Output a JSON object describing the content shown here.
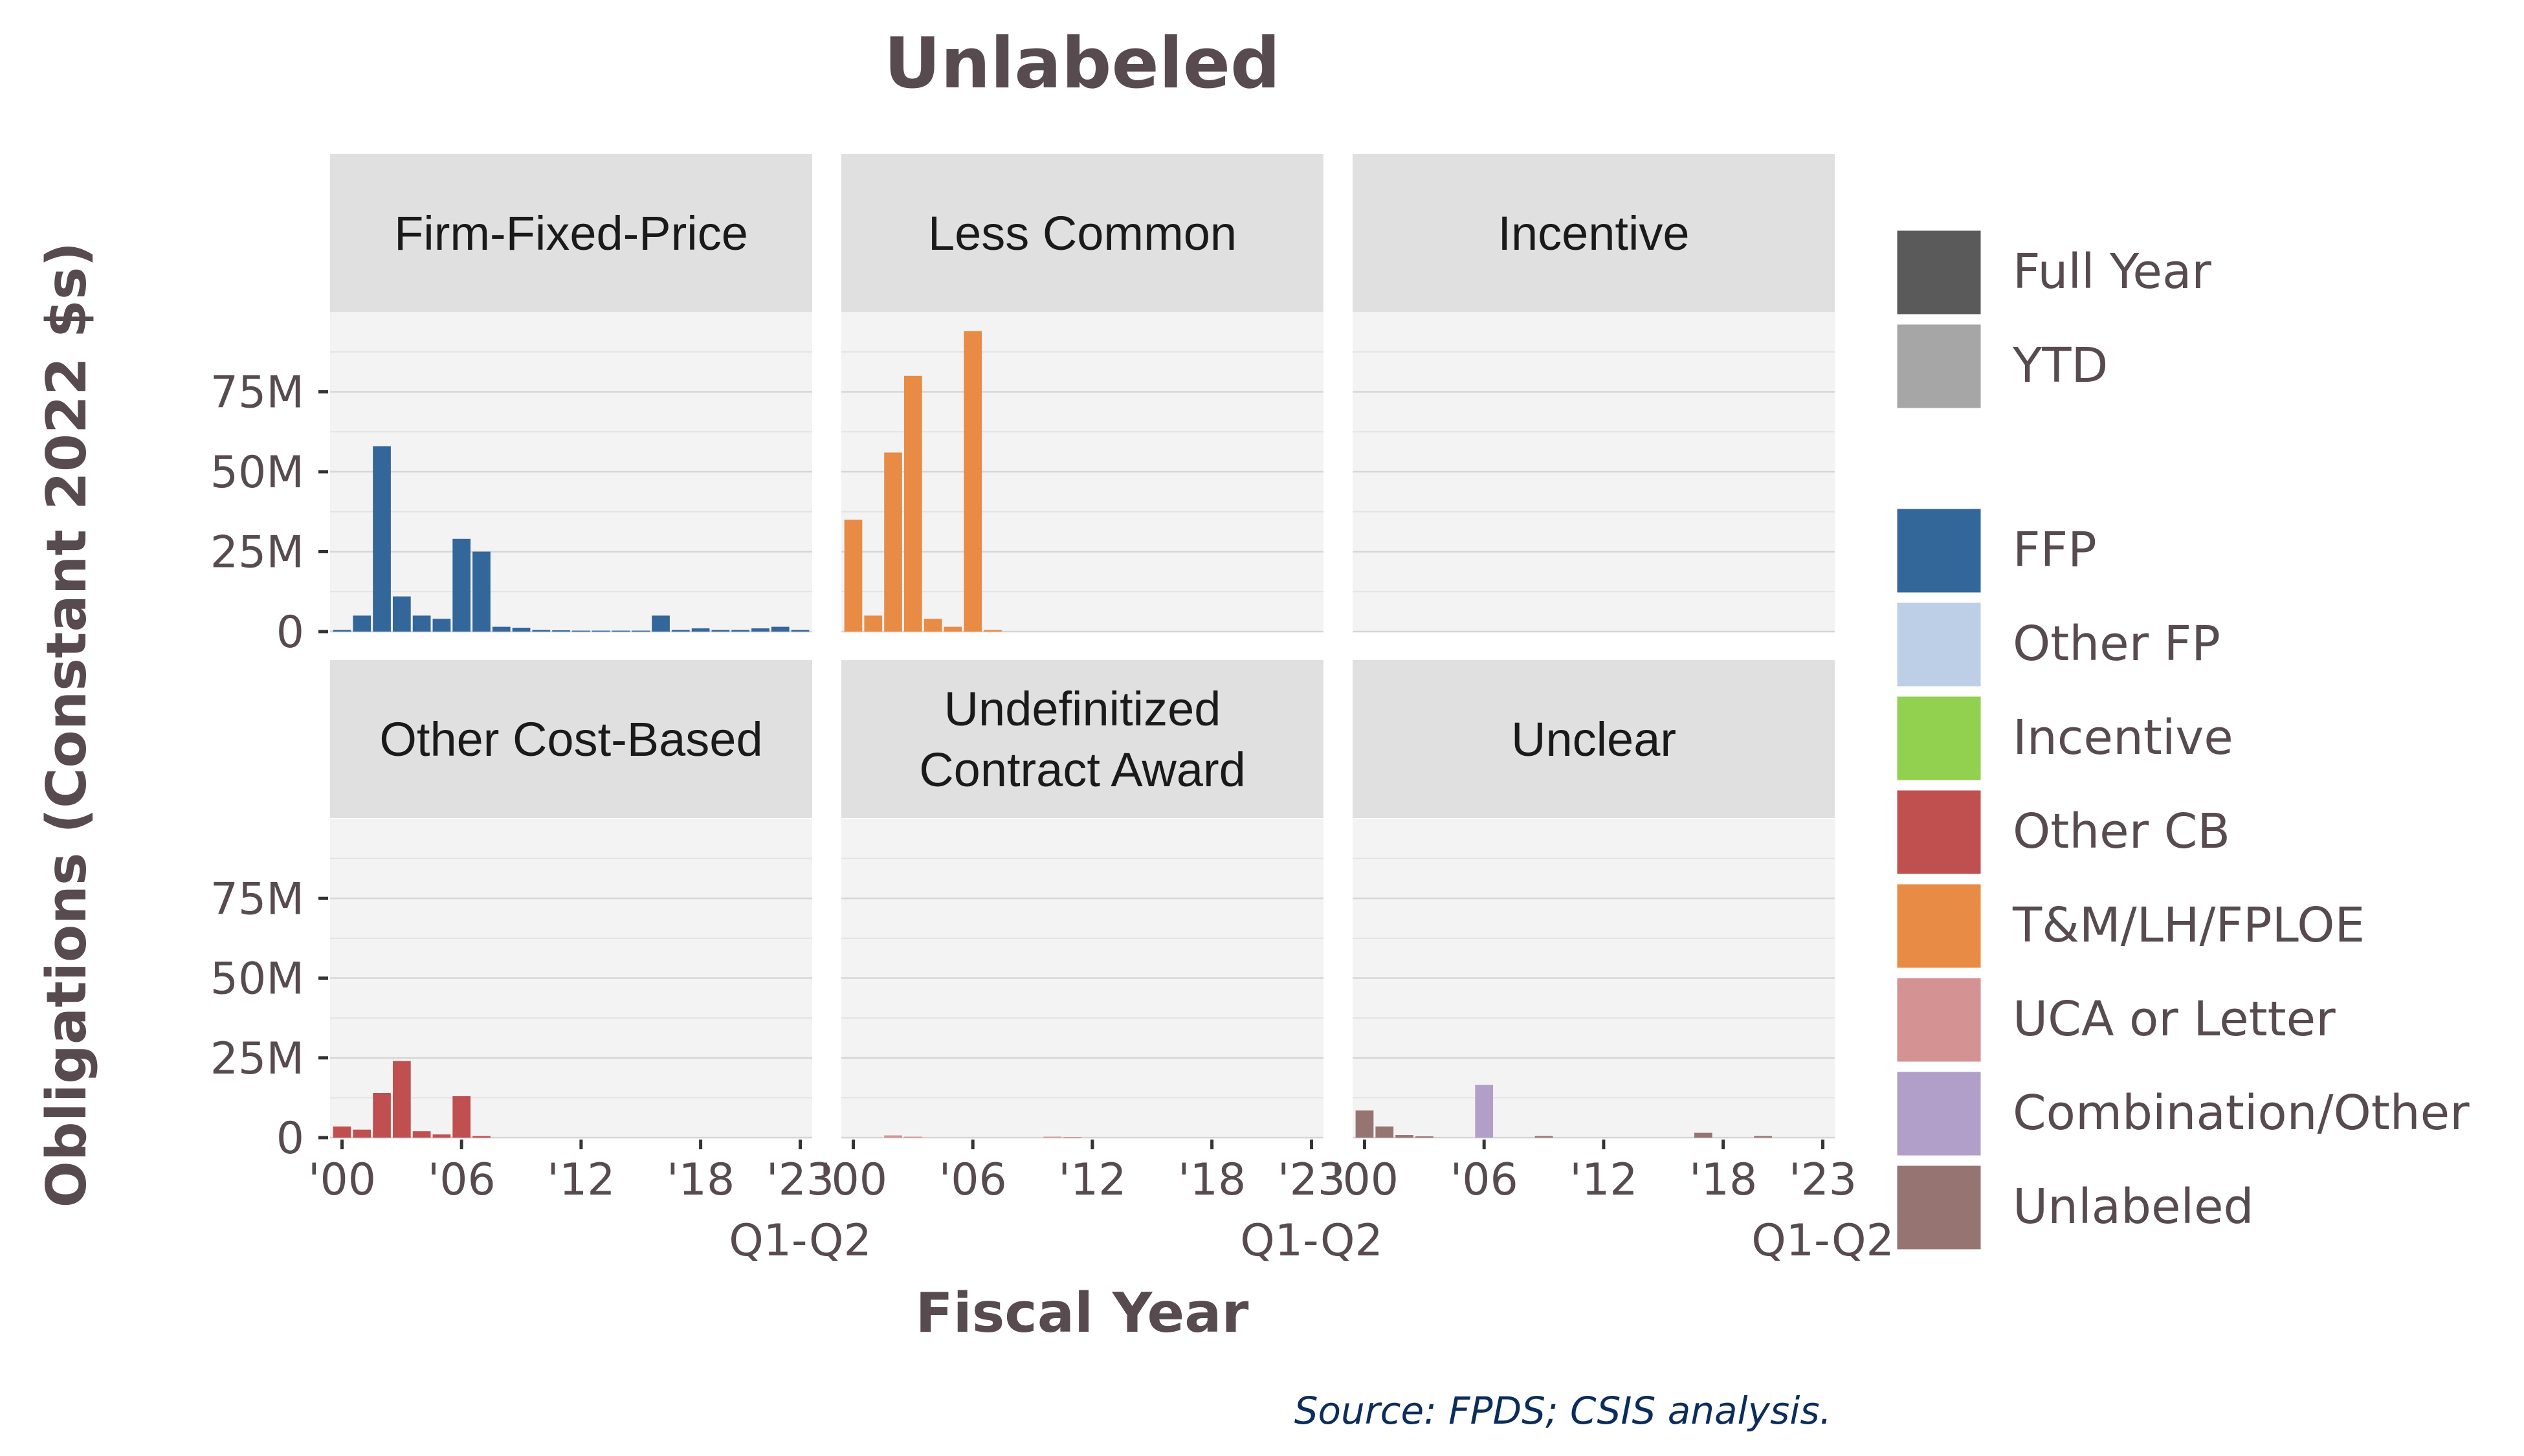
{
  "chart_data": {
    "type": "bar",
    "title": "Unlabeled",
    "xlabel": "Fiscal Year",
    "ylabel": "Obligations (Constant 2022 $s)",
    "caption": "Source: FPDS; CSIS analysis.",
    "ylim": [
      0,
      100
    ],
    "y_unit": "M",
    "y_ticks": [
      {
        "value": 0,
        "label": "0"
      },
      {
        "value": 25,
        "label": "25M"
      },
      {
        "value": 50,
        "label": "50M"
      },
      {
        "value": 75,
        "label": "75M"
      }
    ],
    "x_years": [
      2000,
      2001,
      2002,
      2003,
      2004,
      2005,
      2006,
      2007,
      2008,
      2009,
      2010,
      2011,
      2012,
      2013,
      2014,
      2015,
      2016,
      2017,
      2018,
      2019,
      2020,
      2021,
      2022,
      2023
    ],
    "x_ticks": [
      {
        "value": 2000,
        "label": "'00"
      },
      {
        "value": 2006,
        "label": "'06"
      },
      {
        "value": 2012,
        "label": "'12"
      },
      {
        "value": 2018,
        "label": "'18"
      },
      {
        "value": 2023,
        "label": "'23",
        "sublabel": "Q1-Q2"
      }
    ],
    "grid": true,
    "legend_position": "right",
    "legend_groups": [
      [
        {
          "label": "Full Year",
          "color": "#5a5a5a"
        },
        {
          "label": "YTD",
          "color": "#a6a6a6"
        }
      ],
      [
        {
          "label": "FFP",
          "color": "#336699"
        },
        {
          "label": "Other FP",
          "color": "#bccfe6"
        },
        {
          "label": "Incentive",
          "color": "#92d050"
        },
        {
          "label": "Other CB",
          "color": "#c05050"
        },
        {
          "label": "T&M/LH/FPLOE",
          "color": "#e88b45"
        },
        {
          "label": "UCA or Letter",
          "color": "#d49292"
        },
        {
          "label": "Combination/Other",
          "color": "#b19fc9"
        },
        {
          "label": "Unlabeled",
          "color": "#957472"
        }
      ]
    ],
    "panels": [
      {
        "title": "Firm-Fixed-Price",
        "series": [
          {
            "name": "FFP",
            "color": "#336699",
            "values": [
              0.5,
              5,
              58,
              11,
              5,
              4,
              29,
              25,
              1.5,
              1.2,
              0.5,
              0.4,
              0.3,
              0.3,
              0.3,
              0.3,
              5,
              0.5,
              1,
              0.5,
              0.5,
              1,
              1.5,
              0.5
            ]
          }
        ]
      },
      {
        "title": "Less Common",
        "series": [
          {
            "name": "T&M/LH/FPLOE",
            "color": "#e88b45",
            "values": [
              35,
              5,
              56,
              80,
              4,
              1.5,
              94,
              0.5,
              0,
              0,
              0,
              0,
              0,
              0,
              0,
              0,
              0,
              0,
              0,
              0,
              0,
              0,
              0,
              0
            ]
          }
        ]
      },
      {
        "title": "Incentive",
        "series": []
      },
      {
        "title": "Other Cost-Based",
        "series": [
          {
            "name": "Other CB",
            "color": "#c05050",
            "values": [
              3.5,
              2.5,
              14,
              24,
              2,
              1,
              13,
              0.5,
              0,
              0,
              0,
              0,
              0,
              0,
              0,
              0,
              0,
              0,
              0,
              0,
              0,
              0,
              0,
              0
            ]
          }
        ]
      },
      {
        "title": "Undefinitized\nContract Award",
        "series": [
          {
            "name": "UCA or Letter",
            "color": "#d49292",
            "values": [
              0,
              0,
              0.7,
              0.3,
              0,
              0,
              0,
              0,
              0,
              0,
              0.3,
              0.2,
              0,
              0,
              0,
              0,
              0,
              0,
              0,
              0,
              0,
              0,
              0,
              0
            ]
          }
        ]
      },
      {
        "title": "Unclear",
        "series": [
          {
            "name": "Unlabeled",
            "color": "#957472",
            "values": [
              8.5,
              3.5,
              0.8,
              0.4,
              0,
              0,
              0,
              0,
              0,
              0.5,
              0,
              0,
              0,
              0,
              0,
              0,
              0,
              1.5,
              0,
              0,
              0.5,
              0,
              0,
              0
            ]
          },
          {
            "name": "Combination/Other",
            "color": "#b19fc9",
            "values": [
              0,
              0,
              0,
              0,
              0,
              0,
              16.5,
              0,
              0,
              0,
              0,
              0,
              0,
              0,
              0,
              0,
              0,
              0,
              0,
              0,
              0,
              0,
              0,
              0
            ]
          }
        ]
      }
    ]
  }
}
